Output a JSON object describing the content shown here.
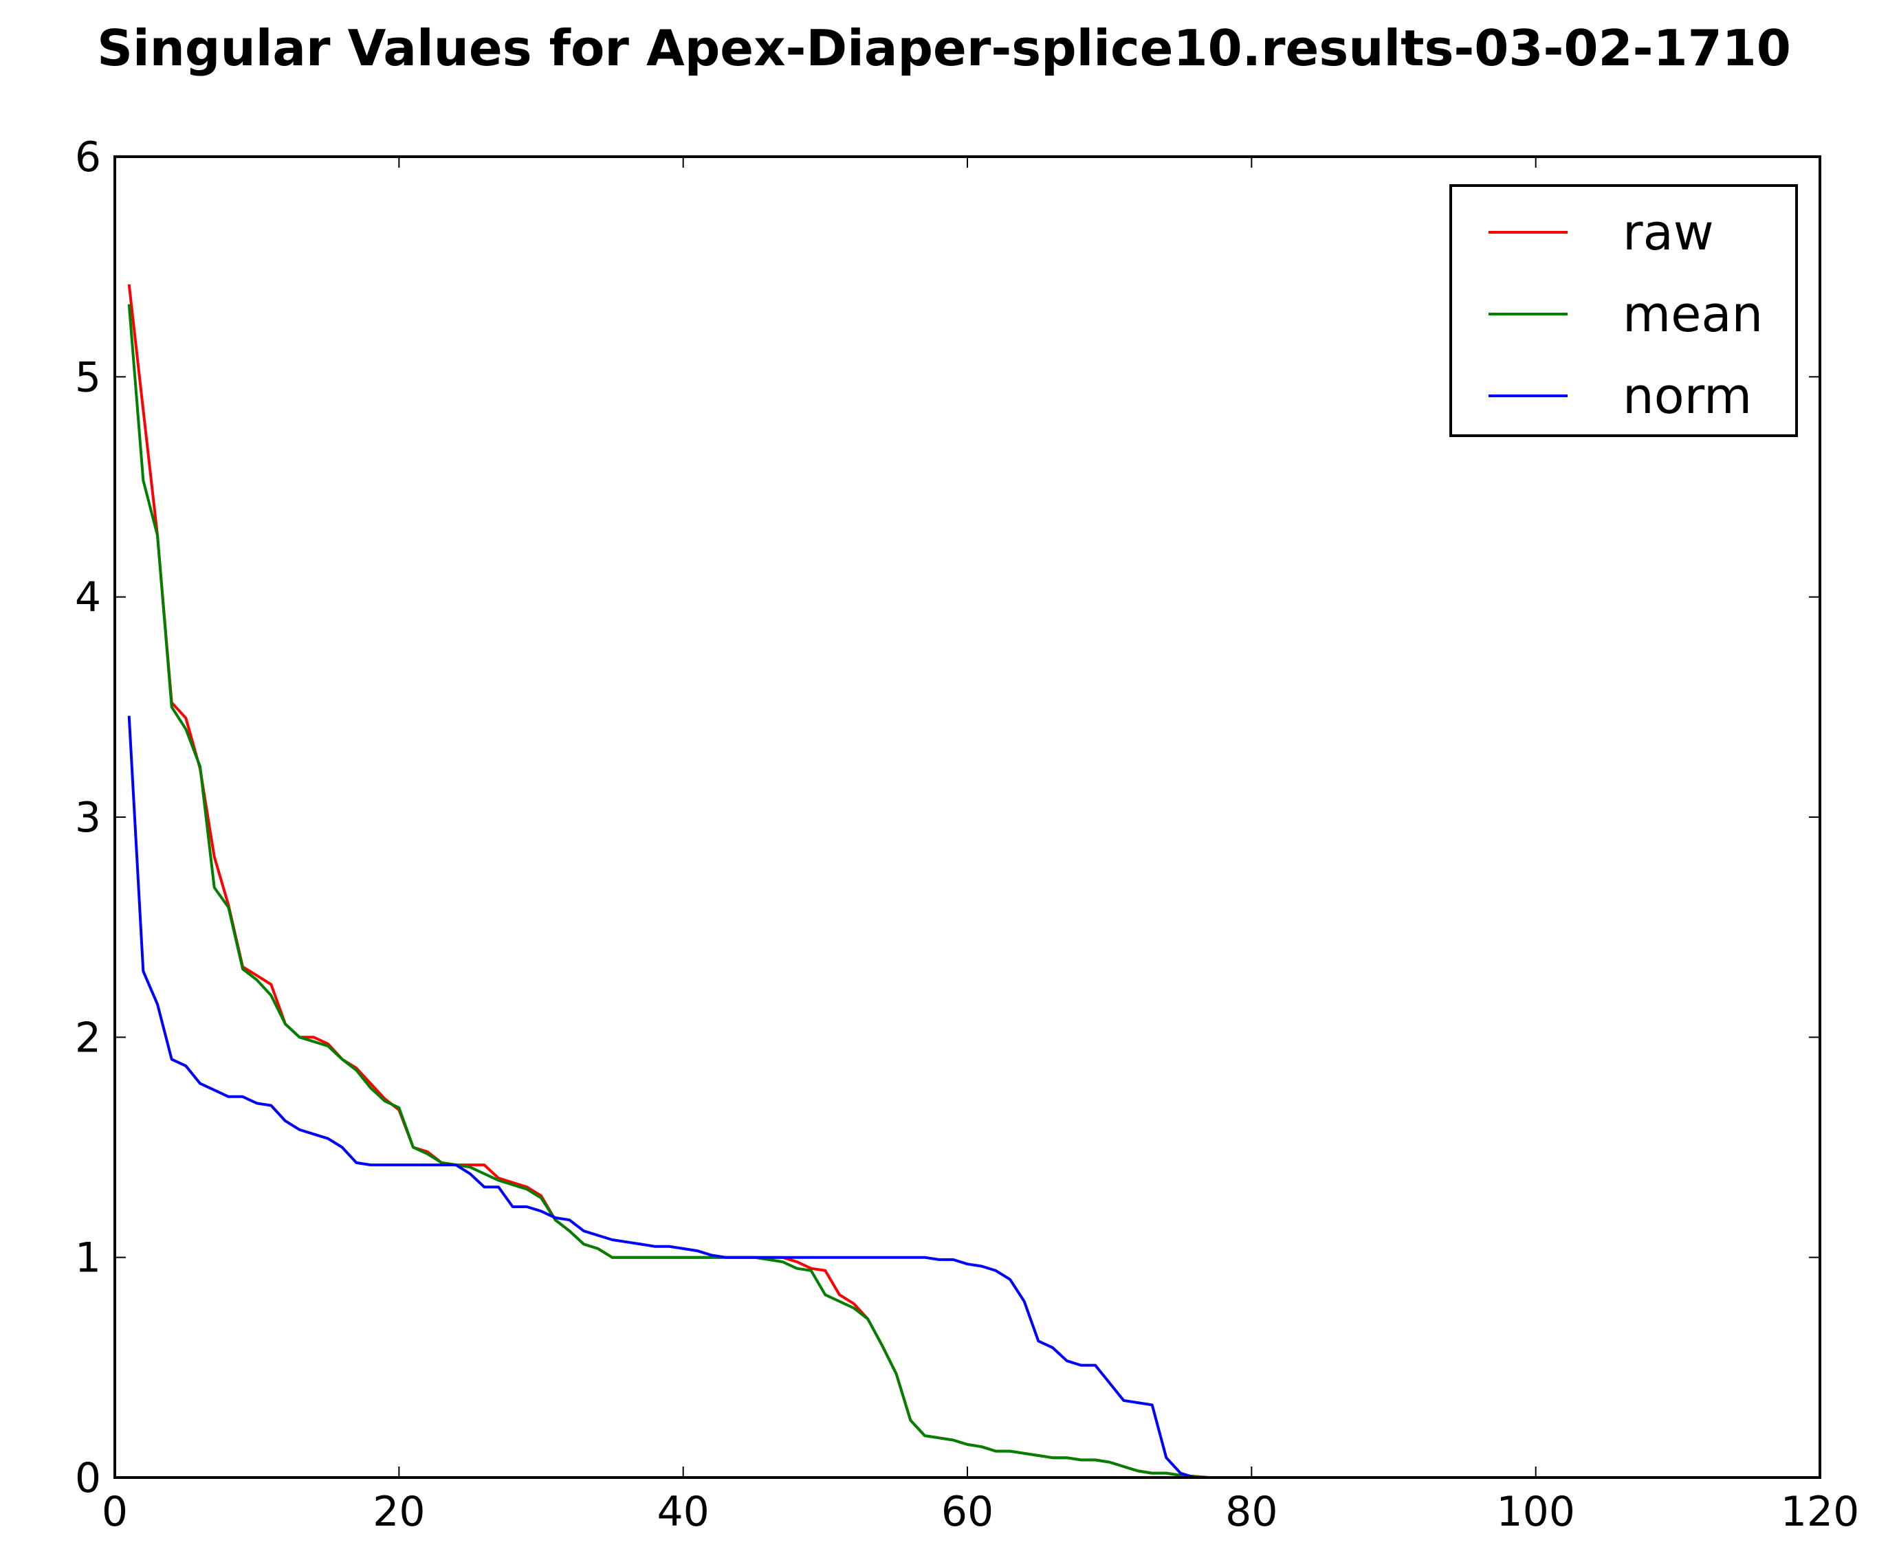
{
  "chart_data": {
    "type": "line",
    "title": "Singular Values for Apex-Diaper-splice10.results-03-02-1710",
    "xlabel": "",
    "ylabel": "",
    "xlim": [
      0,
      120
    ],
    "ylim": [
      0,
      6
    ],
    "x_ticks": [
      0,
      20,
      40,
      60,
      80,
      100,
      120
    ],
    "y_ticks": [
      0,
      1,
      2,
      3,
      4,
      5,
      6
    ],
    "x_tick_labels": [
      "0",
      "20",
      "40",
      "60",
      "80",
      "100",
      "120"
    ],
    "y_tick_labels": [
      "0",
      "1",
      "2",
      "3",
      "4",
      "5",
      "6"
    ],
    "grid": false,
    "legend_position": "top-right",
    "series": [
      {
        "name": "raw",
        "color": "#ff0000",
        "x": [
          1,
          2,
          3,
          4,
          5,
          6,
          7,
          8,
          9,
          10,
          11,
          12,
          13,
          14,
          15,
          16,
          17,
          18,
          19,
          20,
          21,
          22,
          23,
          24,
          25,
          26,
          27,
          28,
          29,
          30,
          31,
          32,
          33,
          34,
          35,
          36,
          37,
          38,
          39,
          40,
          41,
          42,
          43,
          44,
          45,
          46,
          47,
          48,
          49,
          50,
          51,
          52,
          53,
          54,
          55,
          56,
          57,
          58,
          59,
          60,
          61,
          62,
          63,
          64,
          65,
          66,
          67,
          68,
          69,
          70,
          71,
          72,
          73,
          74,
          75,
          76,
          77,
          78,
          79,
          80,
          81,
          82,
          83,
          84,
          85,
          86,
          87,
          88,
          89,
          90,
          91,
          92,
          93,
          94,
          95,
          96,
          97,
          98,
          99,
          100,
          101,
          102,
          103,
          104,
          105,
          106,
          107,
          108,
          109,
          110,
          111,
          112,
          113,
          114,
          115,
          116,
          117,
          118,
          119,
          120
        ],
        "values": [
          5.42,
          4.85,
          4.28,
          3.52,
          3.45,
          3.22,
          2.82,
          2.6,
          2.32,
          2.28,
          2.24,
          2.06,
          2.0,
          2.0,
          1.97,
          1.9,
          1.86,
          1.79,
          1.72,
          1.67,
          1.5,
          1.48,
          1.43,
          1.42,
          1.42,
          1.42,
          1.36,
          1.34,
          1.32,
          1.28,
          1.17,
          1.12,
          1.06,
          1.04,
          1.0,
          1.0,
          1.0,
          1.0,
          1.0,
          1.0,
          1.0,
          1.0,
          1.0,
          1.0,
          1.0,
          1.0,
          1.0,
          0.98,
          0.95,
          0.94,
          0.83,
          0.79,
          0.72,
          0.6,
          0.47,
          0.26,
          0.19,
          0.18,
          0.17,
          0.15,
          0.14,
          0.12,
          0.12,
          0.11,
          0.1,
          0.09,
          0.09,
          0.08,
          0.08,
          0.07,
          0.05,
          0.03,
          0.02,
          0.02,
          0.01,
          0.005,
          0.0,
          0.0,
          0.0,
          0.0,
          0.0,
          0.0,
          0.0,
          0.0,
          0.0,
          0.0,
          0.0,
          0.0,
          0.0,
          0.0,
          0.0,
          0.0,
          0.0,
          0.0,
          0.0,
          0.0,
          0.0,
          0.0,
          0.0,
          0.0,
          0.0,
          0.0,
          0.0,
          0.0,
          0.0,
          0.0,
          0.0,
          0.0,
          0.0,
          0.0,
          0.0,
          0.0,
          0.0,
          0.0,
          0.0,
          0.0,
          0.0,
          0.0,
          0.0,
          0.0
        ]
      },
      {
        "name": "mean",
        "color": "#007f00",
        "x": [
          1,
          2,
          3,
          4,
          5,
          6,
          7,
          8,
          9,
          10,
          11,
          12,
          13,
          14,
          15,
          16,
          17,
          18,
          19,
          20,
          21,
          22,
          23,
          24,
          25,
          26,
          27,
          28,
          29,
          30,
          31,
          32,
          33,
          34,
          35,
          36,
          37,
          38,
          39,
          40,
          41,
          42,
          43,
          44,
          45,
          46,
          47,
          48,
          49,
          50,
          51,
          52,
          53,
          54,
          55,
          56,
          57,
          58,
          59,
          60,
          61,
          62,
          63,
          64,
          65,
          66,
          67,
          68,
          69,
          70,
          71,
          72,
          73,
          74,
          75,
          76,
          77,
          78,
          79,
          80,
          81,
          82,
          83,
          84,
          85,
          86,
          87,
          88,
          89,
          90,
          91,
          92,
          93,
          94,
          95,
          96,
          97,
          98,
          99,
          100,
          101,
          102,
          103,
          104,
          105,
          106,
          107,
          108,
          109,
          110,
          111,
          112,
          113,
          114,
          115,
          116,
          117,
          118,
          119,
          120
        ],
        "values": [
          5.33,
          4.53,
          4.28,
          3.5,
          3.4,
          3.23,
          2.68,
          2.59,
          2.31,
          2.26,
          2.19,
          2.06,
          2.0,
          1.98,
          1.96,
          1.9,
          1.85,
          1.77,
          1.71,
          1.68,
          1.5,
          1.47,
          1.43,
          1.42,
          1.41,
          1.38,
          1.35,
          1.33,
          1.31,
          1.27,
          1.17,
          1.12,
          1.06,
          1.04,
          1.0,
          1.0,
          1.0,
          1.0,
          1.0,
          1.0,
          1.0,
          1.0,
          1.0,
          1.0,
          1.0,
          0.99,
          0.98,
          0.95,
          0.94,
          0.83,
          0.8,
          0.77,
          0.72,
          0.6,
          0.47,
          0.26,
          0.19,
          0.18,
          0.17,
          0.15,
          0.14,
          0.12,
          0.12,
          0.11,
          0.1,
          0.09,
          0.09,
          0.08,
          0.08,
          0.07,
          0.05,
          0.03,
          0.02,
          0.02,
          0.01,
          0.005,
          0.0,
          0.0,
          0.0,
          0.0,
          0.0,
          0.0,
          0.0,
          0.0,
          0.0,
          0.0,
          0.0,
          0.0,
          0.0,
          0.0,
          0.0,
          0.0,
          0.0,
          0.0,
          0.0,
          0.0,
          0.0,
          0.0,
          0.0,
          0.0,
          0.0,
          0.0,
          0.0,
          0.0,
          0.0,
          0.0,
          0.0,
          0.0,
          0.0,
          0.0,
          0.0,
          0.0,
          0.0,
          0.0,
          0.0,
          0.0,
          0.0,
          0.0,
          0.0,
          0.0
        ]
      },
      {
        "name": "norm",
        "color": "#0000ff",
        "x": [
          1,
          2,
          3,
          4,
          5,
          6,
          7,
          8,
          9,
          10,
          11,
          12,
          13,
          14,
          15,
          16,
          17,
          18,
          19,
          20,
          21,
          22,
          23,
          24,
          25,
          26,
          27,
          28,
          29,
          30,
          31,
          32,
          33,
          34,
          35,
          36,
          37,
          38,
          39,
          40,
          41,
          42,
          43,
          44,
          45,
          46,
          47,
          48,
          49,
          50,
          51,
          52,
          53,
          54,
          55,
          56,
          57,
          58,
          59,
          60,
          61,
          62,
          63,
          64,
          65,
          66,
          67,
          68,
          69,
          70,
          71,
          72,
          73,
          74,
          75,
          76,
          77,
          78,
          79,
          80,
          81,
          82,
          83,
          84,
          85,
          86,
          87,
          88,
          89,
          90,
          91,
          92,
          93,
          94,
          95,
          96,
          97,
          98,
          99,
          100,
          101,
          102,
          103,
          104,
          105,
          106,
          107,
          108,
          109,
          110,
          111,
          112,
          113,
          114,
          115,
          116,
          117,
          118,
          119,
          120
        ],
        "values": [
          3.46,
          2.3,
          2.15,
          1.9,
          1.87,
          1.79,
          1.76,
          1.73,
          1.73,
          1.7,
          1.69,
          1.62,
          1.58,
          1.56,
          1.54,
          1.5,
          1.43,
          1.42,
          1.42,
          1.42,
          1.42,
          1.42,
          1.42,
          1.42,
          1.38,
          1.32,
          1.32,
          1.23,
          1.23,
          1.21,
          1.18,
          1.17,
          1.12,
          1.1,
          1.08,
          1.07,
          1.06,
          1.05,
          1.05,
          1.04,
          1.03,
          1.01,
          1.0,
          1.0,
          1.0,
          1.0,
          1.0,
          1.0,
          1.0,
          1.0,
          1.0,
          1.0,
          1.0,
          1.0,
          1.0,
          1.0,
          1.0,
          0.99,
          0.99,
          0.97,
          0.96,
          0.94,
          0.9,
          0.8,
          0.62,
          0.59,
          0.53,
          0.51,
          0.51,
          0.43,
          0.35,
          0.34,
          0.33,
          0.09,
          0.02,
          0.0,
          0.0,
          0.0,
          0.0,
          0.0,
          0.0,
          0.0,
          0.0,
          0.0,
          0.0,
          0.0,
          0.0,
          0.0,
          0.0,
          0.0,
          0.0,
          0.0,
          0.0,
          0.0,
          0.0,
          0.0,
          0.0,
          0.0,
          0.0,
          0.0,
          0.0,
          0.0,
          0.0,
          0.0,
          0.0,
          0.0,
          0.0,
          0.0,
          0.0,
          0.0,
          0.0,
          0.0,
          0.0,
          0.0,
          0.0,
          0.0,
          0.0,
          0.0,
          0.0,
          0.0
        ]
      }
    ]
  }
}
